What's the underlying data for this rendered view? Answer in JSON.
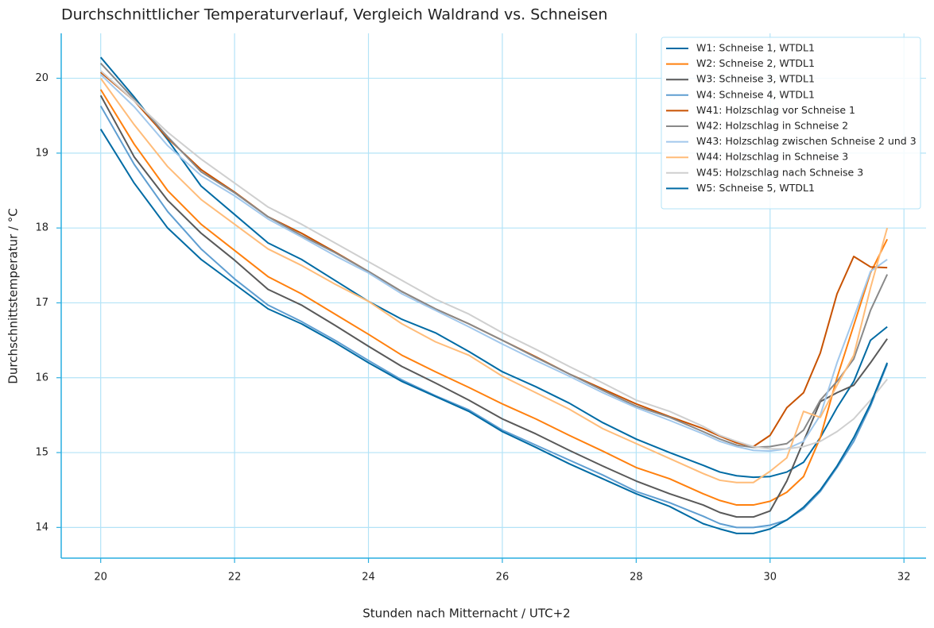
{
  "chart_data": {
    "type": "line",
    "title": "Durchschnittlicher Temperaturverlauf, Vergleich Waldrand vs. Schneisen",
    "x_label": "Stunden nach Mitternacht / UTC+2",
    "y_label": "Durchschnittstemperatur / °C",
    "x": [
      20,
      20.5,
      21,
      21.5,
      22,
      22.5,
      23,
      23.5,
      24,
      24.5,
      25,
      25.5,
      26,
      26.5,
      27,
      27.5,
      28,
      28.5,
      29,
      29.25,
      29.5,
      29.75,
      30,
      30.25,
      30.5,
      30.75,
      31,
      31.25,
      31.5,
      31.75
    ],
    "xlim": [
      19.41,
      32.33
    ],
    "xticks": [
      20,
      22,
      24,
      26,
      28,
      30,
      32
    ],
    "ylim": [
      13.59,
      20.6
    ],
    "yticks": [
      14,
      15,
      16,
      17,
      18,
      19,
      20
    ],
    "grid": true,
    "legend": "upper right",
    "series": [
      {
        "name": "W1: Schneise 1, WTDL1",
        "color": "#006ba4",
        "values": [
          20.28,
          19.75,
          19.18,
          18.56,
          18.18,
          17.8,
          17.58,
          17.3,
          17.02,
          16.78,
          16.6,
          16.35,
          16.08,
          15.88,
          15.66,
          15.4,
          15.18,
          15.0,
          14.83,
          14.74,
          14.69,
          14.67,
          14.68,
          14.74,
          14.87,
          15.2,
          15.6,
          15.95,
          16.5,
          16.68
        ]
      },
      {
        "name": "W2: Schneise 2, WTDL1",
        "color": "#ff800e",
        "values": [
          19.85,
          19.12,
          18.5,
          18.05,
          17.7,
          17.35,
          17.12,
          16.85,
          16.58,
          16.3,
          16.08,
          15.87,
          15.65,
          15.45,
          15.23,
          15.02,
          14.8,
          14.65,
          14.45,
          14.36,
          14.3,
          14.3,
          14.35,
          14.47,
          14.68,
          15.2,
          16.0,
          16.7,
          17.4,
          17.85
        ]
      },
      {
        "name": "W3: Schneise 3, WTDL1",
        "color": "#595959",
        "values": [
          19.77,
          18.95,
          18.37,
          17.93,
          17.57,
          17.18,
          16.97,
          16.7,
          16.42,
          16.15,
          15.93,
          15.7,
          15.45,
          15.25,
          15.03,
          14.82,
          14.62,
          14.45,
          14.3,
          14.2,
          14.14,
          14.14,
          14.22,
          14.62,
          15.15,
          15.68,
          15.8,
          15.9,
          16.2,
          16.52
        ]
      },
      {
        "name": "W4: Schneise 4, WTDL1",
        "color": "#5f9ed1",
        "values": [
          19.63,
          18.85,
          18.22,
          17.72,
          17.32,
          16.97,
          16.75,
          16.5,
          16.23,
          15.97,
          15.76,
          15.57,
          15.3,
          15.1,
          14.9,
          14.7,
          14.48,
          14.33,
          14.15,
          14.05,
          14.0,
          14.0,
          14.03,
          14.1,
          14.25,
          14.48,
          14.8,
          15.15,
          15.62,
          16.18
        ]
      },
      {
        "name": "W41: Holzschlag vor Schneise 1",
        "color": "#c85200",
        "values": [
          20.08,
          19.7,
          19.2,
          18.78,
          18.48,
          18.15,
          17.93,
          17.68,
          17.42,
          17.15,
          16.92,
          16.72,
          16.5,
          16.28,
          16.05,
          15.85,
          15.65,
          15.48,
          15.32,
          15.22,
          15.13,
          15.08,
          15.23,
          15.6,
          15.8,
          16.33,
          17.12,
          17.62,
          17.48,
          17.47
        ]
      },
      {
        "name": "W42: Holzschlag in Schneise 2",
        "color": "#898989",
        "values": [
          20.2,
          19.72,
          19.22,
          18.75,
          18.47,
          18.15,
          17.9,
          17.67,
          17.42,
          17.15,
          16.92,
          16.72,
          16.5,
          16.27,
          16.05,
          15.83,
          15.62,
          15.47,
          15.28,
          15.18,
          15.1,
          15.07,
          15.08,
          15.12,
          15.3,
          15.7,
          15.95,
          16.25,
          16.9,
          17.38
        ]
      },
      {
        "name": "W43: Holzschlag zwischen Schneise 2 und 3",
        "color": "#a2c8ec",
        "values": [
          20.05,
          19.62,
          19.1,
          18.7,
          18.43,
          18.12,
          17.88,
          17.63,
          17.4,
          17.12,
          16.9,
          16.68,
          16.45,
          16.23,
          16.02,
          15.8,
          15.6,
          15.43,
          15.25,
          15.15,
          15.08,
          15.03,
          15.02,
          15.05,
          15.15,
          15.5,
          16.2,
          16.8,
          17.42,
          17.58
        ]
      },
      {
        "name": "W44: Holzschlag in Schneise 3",
        "color": "#ffbc79",
        "values": [
          20.0,
          19.38,
          18.82,
          18.38,
          18.05,
          17.72,
          17.5,
          17.25,
          17.02,
          16.72,
          16.48,
          16.3,
          16.02,
          15.8,
          15.58,
          15.32,
          15.12,
          14.92,
          14.72,
          14.63,
          14.6,
          14.6,
          14.75,
          14.93,
          15.55,
          15.47,
          15.9,
          16.3,
          17.2,
          18.0
        ]
      },
      {
        "name": "W45: Holzschlag nach Schneise 3",
        "color": "#cfcfcf",
        "values": [
          20.1,
          19.7,
          19.28,
          18.92,
          18.6,
          18.28,
          18.05,
          17.8,
          17.55,
          17.3,
          17.05,
          16.85,
          16.6,
          16.38,
          16.15,
          15.93,
          15.7,
          15.55,
          15.35,
          15.23,
          15.15,
          15.08,
          15.05,
          15.05,
          15.08,
          15.15,
          15.28,
          15.45,
          15.7,
          15.98
        ]
      },
      {
        "name": "W5: Schneise 5, WTDL1",
        "color": "#006ba4",
        "values": [
          19.32,
          18.6,
          18.0,
          17.58,
          17.25,
          16.92,
          16.72,
          16.47,
          16.2,
          15.95,
          15.75,
          15.55,
          15.28,
          15.07,
          14.85,
          14.65,
          14.45,
          14.28,
          14.05,
          13.98,
          13.92,
          13.92,
          13.98,
          14.1,
          14.27,
          14.5,
          14.82,
          15.2,
          15.65,
          16.2
        ]
      }
    ]
  }
}
